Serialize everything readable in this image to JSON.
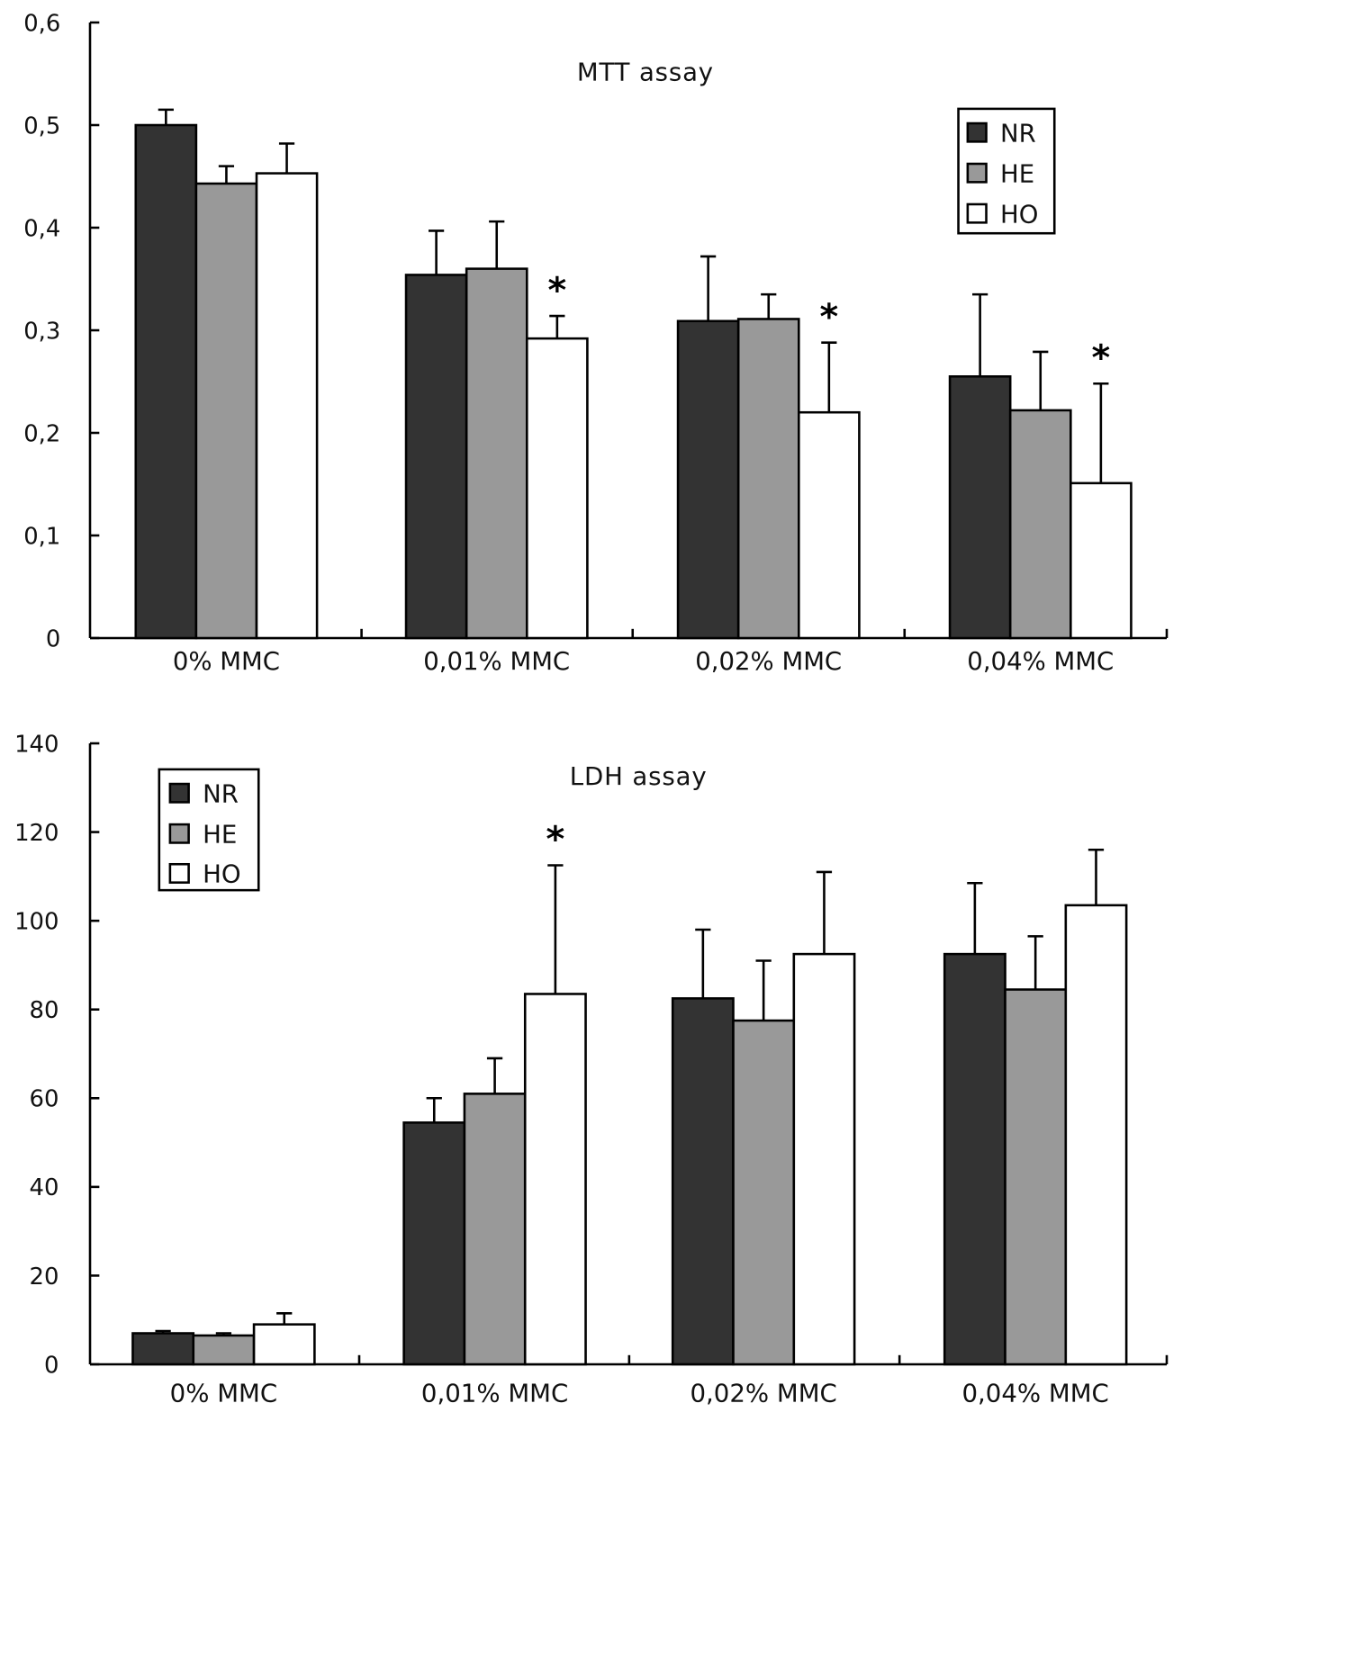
{
  "colors": {
    "NR": "#333333",
    "HE": "#999999",
    "HO": "#ffffff",
    "axis": "#000000"
  },
  "chart_data": [
    {
      "type": "bar",
      "title": "MTT assay",
      "xlabel": "",
      "ylabel": "",
      "ylim": [
        0,
        0.6
      ],
      "yticks": [
        0,
        0.1,
        0.2,
        0.3,
        0.4,
        0.5,
        0.6
      ],
      "ytick_labels": [
        "0",
        "0,1",
        "0,2",
        "0,3",
        "0,4",
        "0,5",
        "0,6"
      ],
      "categories": [
        "0% MMC",
        "0,01% MMC",
        "0,02% MMC",
        "0,04% MMC"
      ],
      "legend": {
        "position": "top-right",
        "entries": [
          "NR",
          "HE",
          "HO"
        ]
      },
      "grid": false,
      "series": [
        {
          "name": "NR",
          "values": [
            0.5,
            0.354,
            0.309,
            0.255
          ],
          "errors": [
            0.015,
            0.043,
            0.063,
            0.08
          ]
        },
        {
          "name": "HE",
          "values": [
            0.443,
            0.36,
            0.311,
            0.222
          ],
          "errors": [
            0.017,
            0.046,
            0.024,
            0.057
          ]
        },
        {
          "name": "HO",
          "values": [
            0.453,
            0.292,
            0.22,
            0.151
          ],
          "errors": [
            0.029,
            0.022,
            0.068,
            0.097
          ]
        }
      ],
      "annotations": [
        {
          "text": "*",
          "series": "HO",
          "category": "0,01% MMC"
        },
        {
          "text": "*",
          "series": "HO",
          "category": "0,02% MMC"
        },
        {
          "text": "*",
          "series": "HO",
          "category": "0,04% MMC"
        }
      ]
    },
    {
      "type": "bar",
      "title": "LDH assay",
      "xlabel": "",
      "ylabel": "",
      "ylim": [
        0,
        140
      ],
      "yticks": [
        0,
        20,
        40,
        60,
        80,
        100,
        120,
        140
      ],
      "ytick_labels": [
        "0",
        "20",
        "40",
        "60",
        "80",
        "100",
        "120",
        "140"
      ],
      "categories": [
        "0% MMC",
        "0,01% MMC",
        "0,02% MMC",
        "0,04% MMC"
      ],
      "legend": {
        "position": "top-left",
        "entries": [
          "NR",
          "HE",
          "HO"
        ]
      },
      "grid": false,
      "series": [
        {
          "name": "NR",
          "values": [
            7,
            54.5,
            82.5,
            92.5
          ],
          "errors": [
            0.5,
            5.5,
            15.5,
            16
          ]
        },
        {
          "name": "HE",
          "values": [
            6.5,
            61,
            77.5,
            84.5
          ],
          "errors": [
            0.5,
            8,
            13.5,
            12
          ]
        },
        {
          "name": "HO",
          "values": [
            9,
            83.5,
            92.5,
            103.5
          ],
          "errors": [
            2.5,
            29,
            18.5,
            12.5
          ]
        }
      ],
      "annotations": [
        {
          "text": "*",
          "series": "HO",
          "category": "0,01% MMC"
        }
      ]
    }
  ]
}
